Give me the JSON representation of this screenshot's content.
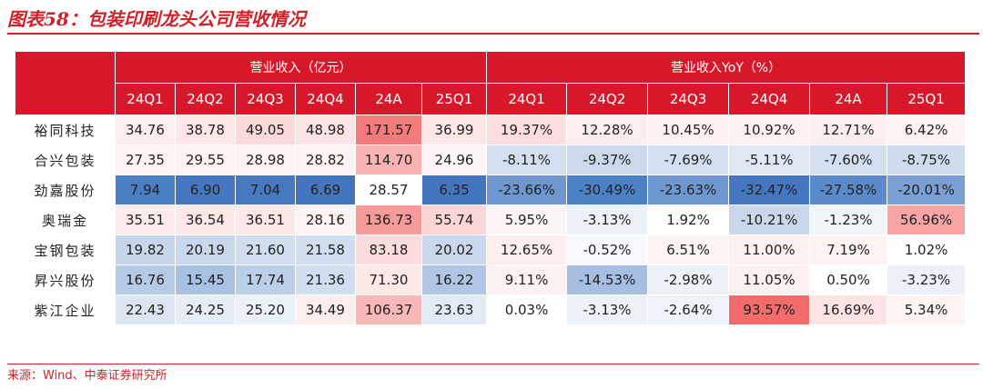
{
  "title": "图表58：包装印刷龙头公司营收情况",
  "group_headers": [
    "营业收入（亿元）",
    "营业收入YoY（%）"
  ],
  "periods": [
    "24Q1",
    "24Q2",
    "24Q3",
    "24Q4",
    "24A",
    "25Q1",
    "24Q1",
    "24Q2",
    "24Q3",
    "24Q4",
    "24A",
    "25Q1"
  ],
  "rows": [
    {
      "name": "裕同科技",
      "cells": [
        "34.76",
        "38.78",
        "49.05",
        "48.98",
        "171.57",
        "36.99",
        "19.37%",
        "12.28%",
        "10.45%",
        "10.92%",
        "12.71%",
        "6.42%"
      ],
      "colors": [
        "#fdeeee",
        "#fde6e6",
        "#fcd9d9",
        "#fce4e4",
        "#f47b7b",
        "#fde6e6",
        "#fcdede",
        "#fdeeee",
        "#fdf1f1",
        "#fdf1f1",
        "#fdeeee",
        "#fdf3f3"
      ]
    },
    {
      "name": "合兴包装",
      "cells": [
        "27.35",
        "29.55",
        "28.98",
        "28.82",
        "114.70",
        "24.96",
        "-8.11%",
        "-9.37%",
        "-7.69%",
        "-5.11%",
        "-7.60%",
        "-8.75%"
      ],
      "colors": [
        "#fdf3f3",
        "#fdf3f3",
        "#fdf3f3",
        "#fdf3f3",
        "#f9b3b3",
        "#fdf5f5",
        "#d4e0ef",
        "#ccd9ec",
        "#d4e0ef",
        "#dfe8f3",
        "#d4e0ef",
        "#cfdcee"
      ]
    },
    {
      "name": "劲嘉股份",
      "cells": [
        "7.94",
        "6.90",
        "7.04",
        "6.69",
        "28.57",
        "6.35",
        "-23.66%",
        "-30.49%",
        "-23.63%",
        "-32.47%",
        "-27.58%",
        "-20.01%"
      ],
      "colors": [
        "#4b7fc4",
        "#4577c0",
        "#4779c1",
        "#4476bf",
        "#ffffff",
        "#4374be",
        "#6e97cf",
        "#4d81c5",
        "#6e97cf",
        "#4577c0",
        "#5b8aca",
        "#7a9fd3"
      ]
    },
    {
      "name": "奥瑞金",
      "cells": [
        "35.51",
        "36.54",
        "36.51",
        "28.16",
        "136.73",
        "55.74",
        "5.95%",
        "-3.13%",
        "1.92%",
        "-10.21%",
        "-1.23%",
        "56.96%"
      ],
      "colors": [
        "#fdeaea",
        "#fde8e8",
        "#fde8e8",
        "#fdf3f3",
        "#f79a9a",
        "#fcd6d6",
        "#fdf5f5",
        "#edf2f9",
        "#ffffff",
        "#c9d7eb",
        "#f1f5fa",
        "#f8a4a4"
      ]
    },
    {
      "name": "宝钢包装",
      "cells": [
        "19.82",
        "20.19",
        "21.60",
        "21.58",
        "83.18",
        "20.02",
        "12.65%",
        "-0.52%",
        "6.51%",
        "11.00%",
        "7.19%",
        "1.02%"
      ],
      "colors": [
        "#c6d6eb",
        "#c9d8ec",
        "#d1deef",
        "#d1deef",
        "#fcdcdc",
        "#c9d8ec",
        "#fdeeee",
        "#f7f9fc",
        "#fdf4f4",
        "#fdf0f0",
        "#fdf3f3",
        "#ffffff"
      ]
    },
    {
      "name": "昇兴股份",
      "cells": [
        "16.76",
        "15.45",
        "17.74",
        "21.36",
        "71.30",
        "16.22",
        "9.11%",
        "-14.53%",
        "-2.98%",
        "11.05%",
        "0.50%",
        "-3.23%"
      ],
      "colors": [
        "#b5cae6",
        "#a9c1e2",
        "#bccfe8",
        "#d1deef",
        "#fde8e8",
        "#b0c6e4",
        "#fdf2f2",
        "#a5bee1",
        "#edf2f9",
        "#fdf0f0",
        "#ffffff",
        "#ecf1f9"
      ]
    },
    {
      "name": "紫江企业",
      "cells": [
        "22.43",
        "24.25",
        "25.20",
        "34.49",
        "106.37",
        "23.63",
        "0.03%",
        "-3.13%",
        "-2.64%",
        "93.57%",
        "16.69%",
        "5.34%"
      ],
      "colors": [
        "#dce6f3",
        "#e6edf6",
        "#ebf1f8",
        "#fdeeee",
        "#f8b8b8",
        "#e2eaf5",
        "#ffffff",
        "#edf2f9",
        "#eef3f9",
        "#f26c6c",
        "#fde4e4",
        "#fdf4f4"
      ]
    }
  ],
  "source": "来源：Wind、中泰证券研究所"
}
